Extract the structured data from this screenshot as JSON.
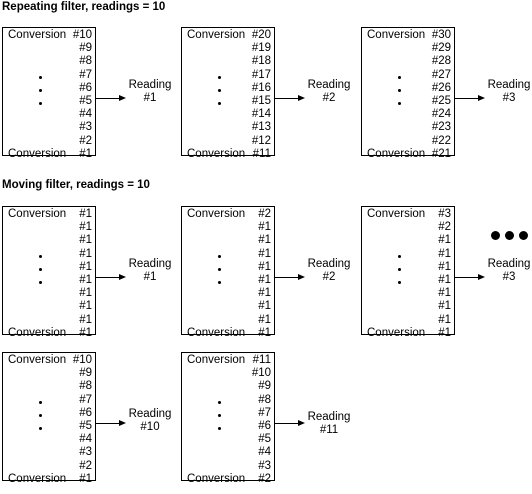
{
  "sections": [
    {
      "title": "Repeating filter, readings = 10"
    },
    {
      "title": "Moving filter, readings = 10"
    }
  ],
  "conversion_label": "Conversion",
  "reading_label": "Reading",
  "boxes": [
    {
      "numbers": [
        "#10",
        "#9",
        "#8",
        "#7",
        "#6",
        "#5",
        "#4",
        "#3",
        "#2",
        "#1"
      ],
      "reading": "#1"
    },
    {
      "numbers": [
        "#20",
        "#19",
        "#18",
        "#17",
        "#16",
        "#15",
        "#14",
        "#13",
        "#12",
        "#11"
      ],
      "reading": "#2"
    },
    {
      "numbers": [
        "#30",
        "#29",
        "#28",
        "#27",
        "#26",
        "#25",
        "#24",
        "#23",
        "#22",
        "#21"
      ],
      "reading": "#3"
    },
    {
      "numbers": [
        "#1",
        "#1",
        "#1",
        "#1",
        "#1",
        "#1",
        "#1",
        "#1",
        "#1",
        "#1"
      ],
      "reading": "#1"
    },
    {
      "numbers": [
        "#2",
        "#1",
        "#1",
        "#1",
        "#1",
        "#1",
        "#1",
        "#1",
        "#1",
        "#1"
      ],
      "reading": "#2"
    },
    {
      "numbers": [
        "#3",
        "#2",
        "#1",
        "#1",
        "#1",
        "#1",
        "#1",
        "#1",
        "#1",
        "#1"
      ],
      "reading": "#3"
    },
    {
      "numbers": [
        "#10",
        "#9",
        "#8",
        "#7",
        "#6",
        "#5",
        "#4",
        "#3",
        "#2",
        "#1"
      ],
      "reading": "#10"
    },
    {
      "numbers": [
        "#11",
        "#10",
        "#9",
        "#8",
        "#7",
        "#6",
        "#5",
        "#4",
        "#3",
        "#2"
      ],
      "reading": "#11"
    }
  ]
}
